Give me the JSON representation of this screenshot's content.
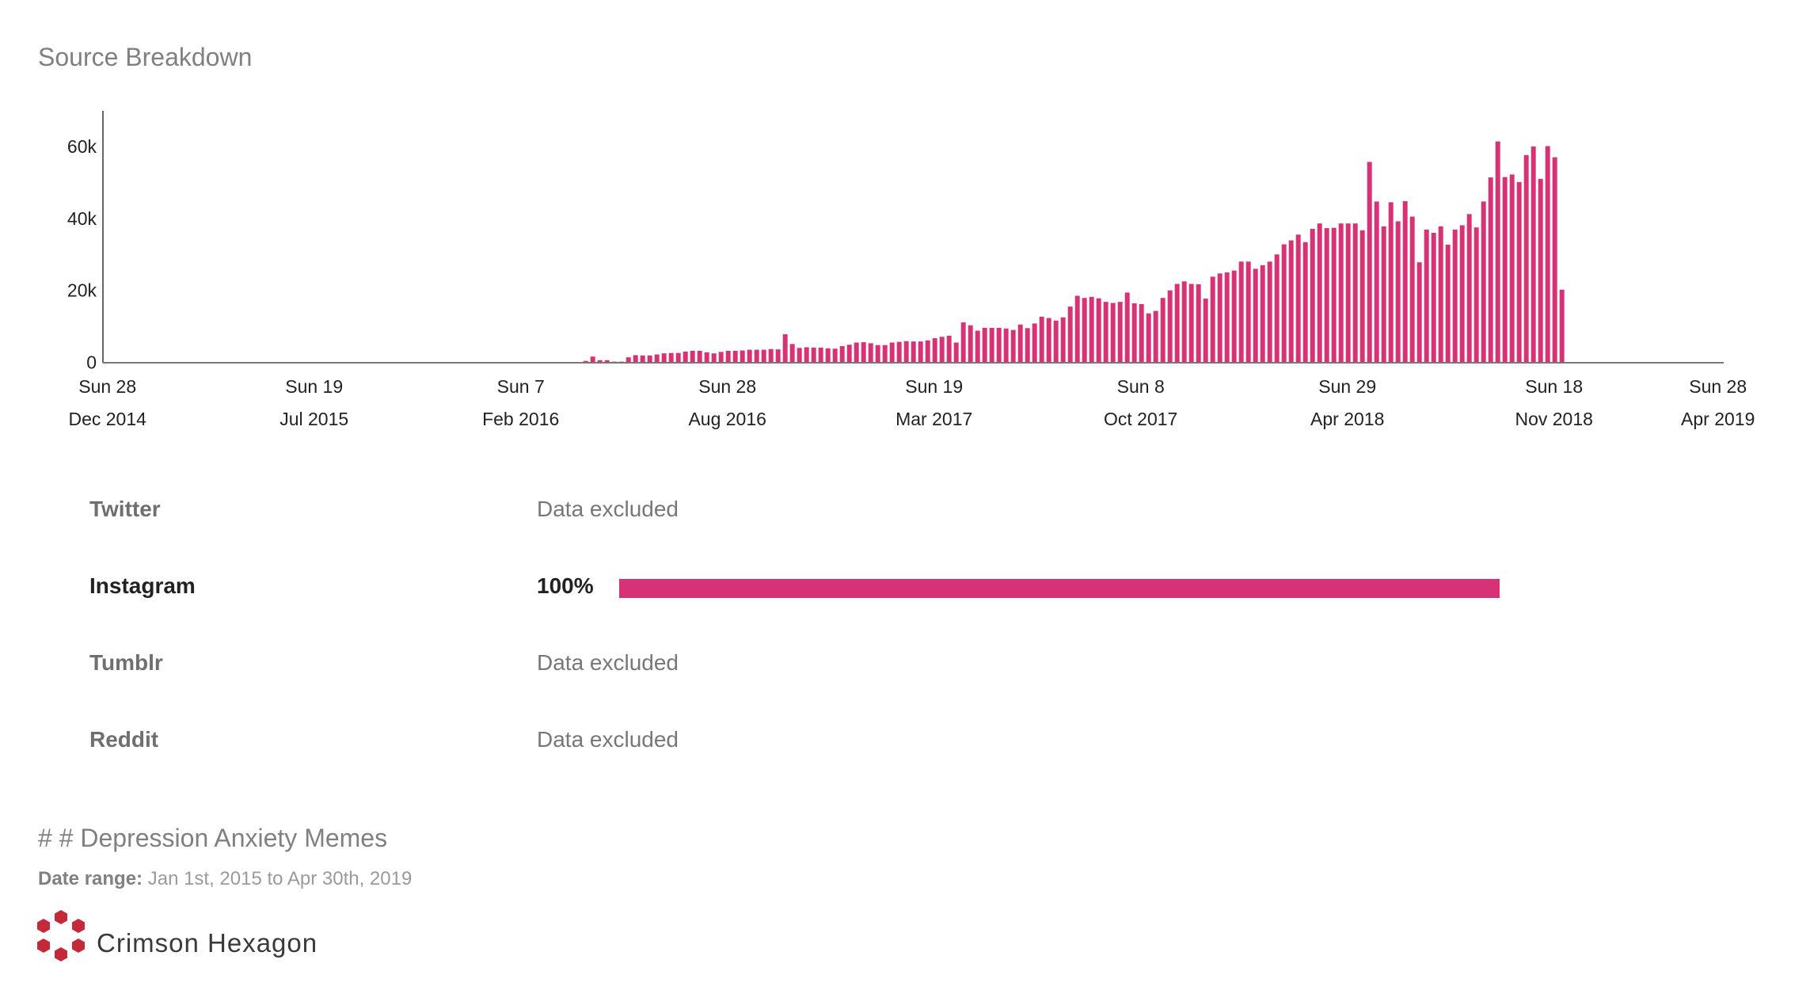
{
  "header": {
    "title": "Source Breakdown"
  },
  "chart_data": {
    "type": "bar",
    "title": "Source Breakdown",
    "xlabel": "",
    "ylabel": "",
    "x_unit": "weeks since Sun 28 Dec 2014",
    "xlim": [
      0,
      226
    ],
    "ylim": [
      0,
      70000
    ],
    "y_ticks": [
      {
        "value": 0,
        "label": "0"
      },
      {
        "value": 20000,
        "label": "20k"
      },
      {
        "value": 40000,
        "label": "40k"
      },
      {
        "value": 60000,
        "label": "60k"
      }
    ],
    "x_ticks": [
      {
        "week": 0,
        "label1": "Sun 28",
        "label2": "Dec 2014"
      },
      {
        "week": 29,
        "label1": "Sun 19",
        "label2": "Jul 2015"
      },
      {
        "week": 58,
        "label1": "Sun 7",
        "label2": "Feb 2016"
      },
      {
        "week": 87,
        "label1": "Sun 28",
        "label2": "Aug 2016"
      },
      {
        "week": 116,
        "label1": "Sun 19",
        "label2": "Mar 2017"
      },
      {
        "week": 145,
        "label1": "Sun 8",
        "label2": "Oct 2017"
      },
      {
        "week": 174,
        "label1": "Sun 29",
        "label2": "Apr 2018"
      },
      {
        "week": 203,
        "label1": "Sun 18",
        "label2": "Nov 2018"
      },
      {
        "week": 226,
        "label1": "Sun 28",
        "label2": "Apr 2019"
      }
    ],
    "first_bar_week": 68,
    "values": [
      400,
      1600,
      600,
      600,
      200,
      200,
      1400,
      2000,
      1900,
      1900,
      2200,
      2500,
      2600,
      2600,
      3000,
      3200,
      3200,
      2800,
      2500,
      2900,
      3200,
      3200,
      3300,
      3500,
      3500,
      3500,
      3700,
      3600,
      7800,
      5100,
      4000,
      4200,
      4100,
      4100,
      3900,
      3800,
      4500,
      4900,
      5500,
      5600,
      5300,
      4800,
      4800,
      5500,
      5700,
      5900,
      5800,
      5800,
      6100,
      6700,
      7100,
      7400,
      5500,
      11100,
      10300,
      8800,
      9600,
      9600,
      9600,
      9400,
      9000,
      10500,
      9500,
      10800,
      12700,
      12300,
      11600,
      12500,
      15500,
      18500,
      17900,
      18200,
      17800,
      16800,
      16500,
      16800,
      19400,
      16400,
      16200,
      13600,
      14300,
      17900,
      20000,
      21800,
      22500,
      21800,
      21700,
      17700,
      23800,
      24700,
      25000,
      25500,
      28000,
      28000,
      26000,
      27000,
      28000,
      30000,
      32800,
      33900,
      35500,
      33400,
      37100,
      38600,
      37300,
      37400,
      38600,
      38600,
      38600,
      36700,
      55700,
      44700,
      37800,
      44500,
      39200,
      44800,
      40500,
      27800,
      36900,
      36000,
      37800,
      32700,
      36900,
      38100,
      41200,
      37500,
      44700,
      51400,
      61400,
      51500,
      52200,
      50100,
      57600,
      60000,
      51000,
      60100,
      57000,
      20200
    ],
    "color": "#d83277"
  },
  "sources": [
    {
      "name": "Twitter",
      "value": "Data excluded",
      "active": false
    },
    {
      "name": "Instagram",
      "value": "100%",
      "percent": 100,
      "active": true
    },
    {
      "name": "Tumblr",
      "value": "Data excluded",
      "active": false
    },
    {
      "name": "Reddit",
      "value": "Data excluded",
      "active": false
    }
  ],
  "footer": {
    "topic": "# # Depression Anxiety Memes",
    "date_range_label": "Date range:",
    "date_range_value": "Jan 1st, 2015 to Apr 30th, 2019",
    "brand": "Crimson Hexagon",
    "brand_color": "#c4293a"
  }
}
